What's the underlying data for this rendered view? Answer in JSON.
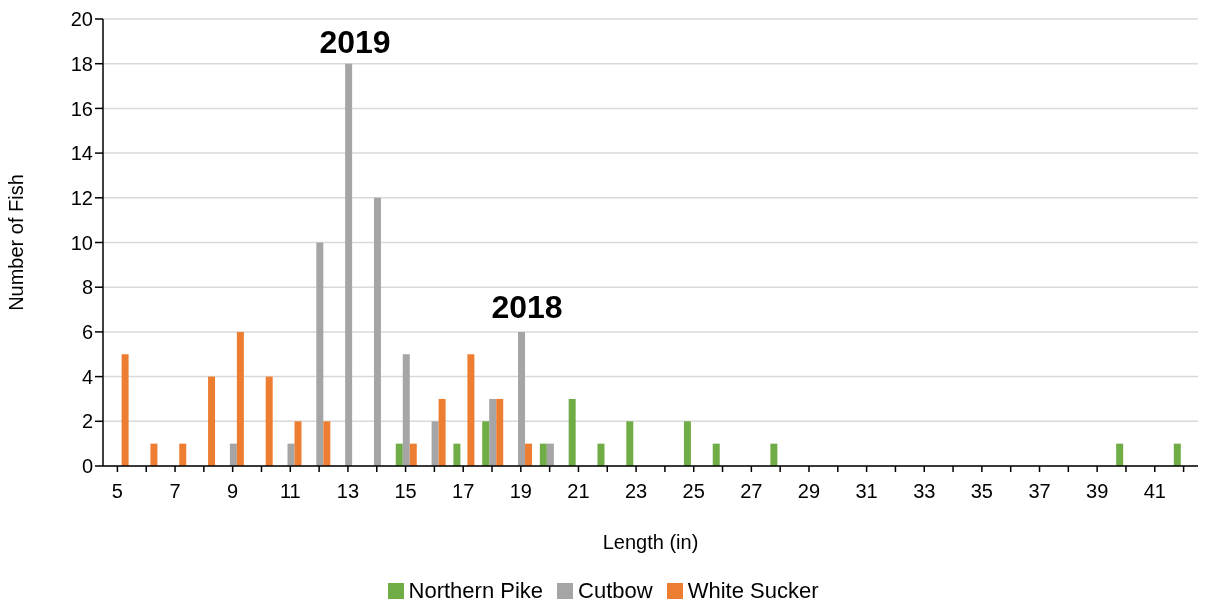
{
  "chart_data": {
    "type": "bar",
    "xlabel": "Length (in)",
    "ylabel": "Number of Fish",
    "categories": [
      "5",
      null,
      "7",
      null,
      "9",
      null,
      "11",
      null,
      "13",
      null,
      "15",
      null,
      "17",
      null,
      "19",
      null,
      "21",
      null,
      "23",
      null,
      "25",
      null,
      "27",
      null,
      "29",
      null,
      "31",
      null,
      "33",
      null,
      "35",
      null,
      "37",
      null,
      "39",
      null,
      "41",
      null
    ],
    "series": [
      {
        "name": "Northern Pike",
        "color": "#70ad47",
        "values": [
          null,
          null,
          null,
          null,
          null,
          null,
          null,
          null,
          null,
          null,
          1,
          null,
          1,
          2,
          null,
          1,
          3,
          1,
          2,
          null,
          2,
          1,
          null,
          1,
          null,
          null,
          null,
          null,
          null,
          null,
          null,
          null,
          null,
          null,
          null,
          1,
          null,
          1
        ]
      },
      {
        "name": "Cutbow",
        "color": "#a5a5a5",
        "values": [
          null,
          null,
          null,
          null,
          1,
          null,
          1,
          10,
          18,
          12,
          5,
          2,
          null,
          3,
          6,
          1,
          null,
          null,
          null,
          null,
          null,
          null,
          null,
          null,
          null,
          null,
          null,
          null,
          null,
          null,
          null,
          null,
          null,
          null,
          null,
          null,
          null,
          null
        ]
      },
      {
        "name": "White Sucker",
        "color": "#ed7d31",
        "values": [
          5,
          1,
          1,
          4,
          6,
          4,
          2,
          2,
          null,
          null,
          1,
          3,
          5,
          3,
          1,
          null,
          null,
          null,
          null,
          null,
          null,
          null,
          null,
          null,
          null,
          null,
          null,
          null,
          null,
          null,
          null,
          null,
          null,
          null,
          null,
          null,
          null,
          null
        ]
      }
    ],
    "ylim": [
      0,
      20
    ],
    "yticks": [
      0,
      2,
      4,
      6,
      8,
      10,
      12,
      14,
      16,
      18,
      20
    ],
    "grid": "y",
    "legend": "bottom",
    "annotations": [
      "2019",
      "2018"
    ]
  }
}
